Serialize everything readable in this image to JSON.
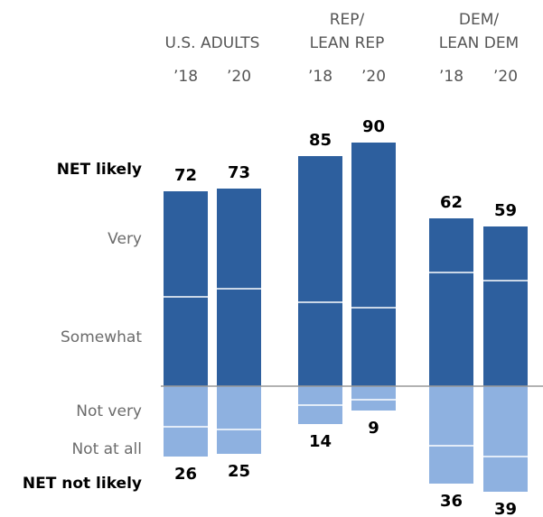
{
  "chart_data": {
    "type": "bar",
    "subtype": "diverging-stacked",
    "groups": [
      {
        "label_lines": [
          "U.S. ADULTS"
        ],
        "years": [
          "’18",
          "’20"
        ]
      },
      {
        "label_lines": [
          "REP/",
          "LEAN REP"
        ],
        "years": [
          "’18",
          "’20"
        ]
      },
      {
        "label_lines": [
          "DEM/",
          "LEAN DEM"
        ],
        "years": [
          "’18",
          "’20"
        ]
      }
    ],
    "row_labels": {
      "net_likely": "NET likely",
      "very": "Very",
      "somewhat": "Somewhat",
      "not_very": "Not very",
      "not_at_all": "Not at all",
      "net_not_likely": "NET not likely"
    },
    "bars": [
      {
        "group": 0,
        "year": "’18",
        "net_likely": 72,
        "very": 39,
        "somewhat": 33,
        "not_very": 15,
        "not_at_all": 11,
        "net_not_likely": 26
      },
      {
        "group": 0,
        "year": "’20",
        "net_likely": 73,
        "very": 37,
        "somewhat": 36,
        "not_very": 16,
        "not_at_all": 9,
        "net_not_likely": 25
      },
      {
        "group": 1,
        "year": "’18",
        "net_likely": 85,
        "very": 54,
        "somewhat": 31,
        "not_very": 7,
        "not_at_all": 7,
        "net_not_likely": 14
      },
      {
        "group": 1,
        "year": "’20",
        "net_likely": 90,
        "very": 61,
        "somewhat": 29,
        "not_very": 5,
        "not_at_all": 4,
        "net_not_likely": 9
      },
      {
        "group": 2,
        "year": "’18",
        "net_likely": 62,
        "very": 20,
        "somewhat": 42,
        "not_very": 22,
        "not_at_all": 14,
        "net_not_likely": 36
      },
      {
        "group": 2,
        "year": "’20",
        "net_likely": 59,
        "very": 20,
        "somewhat": 39,
        "not_very": 26,
        "not_at_all": 13,
        "net_not_likely": 39
      }
    ],
    "colors": {
      "likely": "#2d5f9e",
      "not_likely": "#8eb1e0",
      "separator": "#ffffff",
      "baseline": "#999999"
    }
  }
}
